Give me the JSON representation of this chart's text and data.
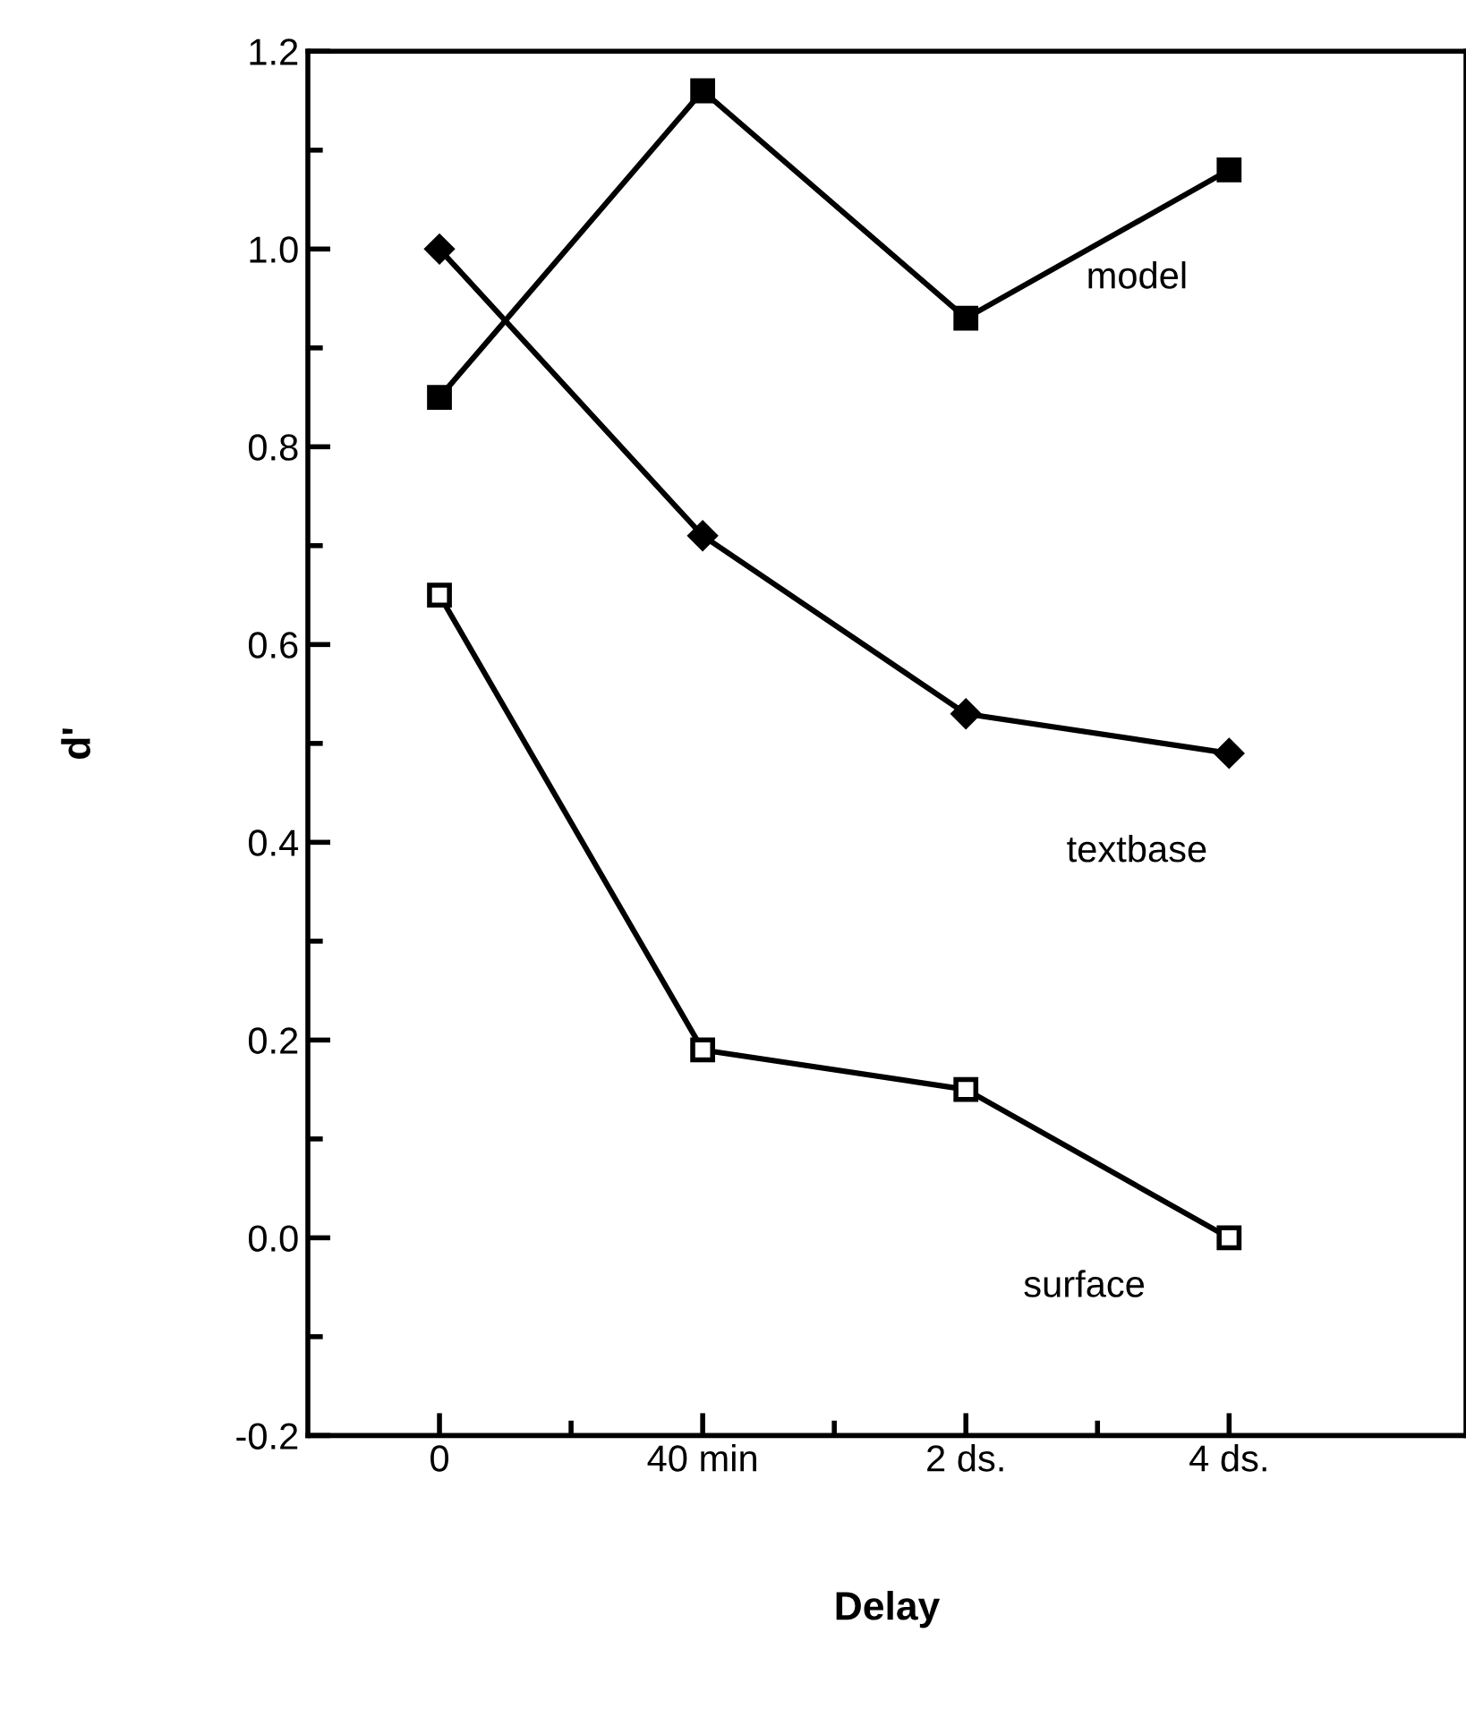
{
  "chart_data": {
    "type": "line",
    "xlabel": "Delay",
    "ylabel": "d'",
    "categories": [
      "0",
      "40 min",
      "2 ds.",
      "4 ds."
    ],
    "series": [
      {
        "name": "model",
        "color": "#000000",
        "marker": "square",
        "values": [
          0.85,
          1.16,
          0.93,
          1.08
        ]
      },
      {
        "name": "textbase",
        "color": "#000000",
        "marker": "diamond",
        "values": [
          1.0,
          0.71,
          0.53,
          0.49
        ]
      },
      {
        "name": "surface",
        "color": "#000000",
        "marker": "square",
        "values": [
          0.65,
          0.19,
          0.15,
          0.0
        ]
      }
    ],
    "ylim": [
      -0.2,
      1.2
    ],
    "yticks": [
      {
        "value": -0.2,
        "label": "-0.2"
      },
      {
        "value": 0,
        "label": "0.0"
      },
      {
        "value": 0.2,
        "label": "0.2"
      },
      {
        "value": 0.4,
        "label": "0.4"
      },
      {
        "value": 0.6,
        "label": "0.6"
      },
      {
        "value": 0.8,
        "label": "0.8"
      },
      {
        "value": 1.0,
        "label": "1.0"
      },
      {
        "value": 1.2,
        "label": "1.2"
      }
    ],
    "grid": false,
    "legend": false,
    "line_style": "solid"
  }
}
